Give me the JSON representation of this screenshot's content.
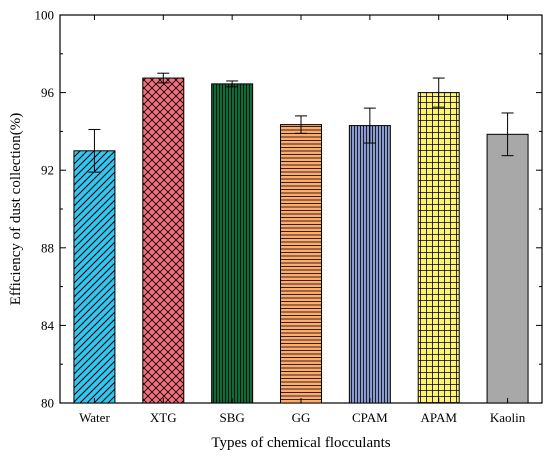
{
  "chart_data": {
    "type": "bar",
    "title": "",
    "xlabel": "Types of chemical flocculants",
    "ylabel": "Efficiency of dust collection(%)",
    "ylim": [
      80,
      100
    ],
    "yticks": [
      80,
      84,
      88,
      92,
      96,
      100
    ],
    "categories": [
      "Water",
      "XTG",
      "SBG",
      "GG",
      "CPAM",
      "APAM",
      "Kaolin"
    ],
    "values": [
      93.0,
      96.75,
      96.45,
      94.35,
      94.3,
      96.0,
      93.85
    ],
    "errors": [
      1.1,
      0.25,
      0.15,
      0.45,
      0.9,
      0.75,
      1.1
    ],
    "colors": [
      "#33c6ef",
      "#f2707e",
      "#0e6b3a",
      "#ffab6b",
      "#8c9bd0",
      "#fff36a",
      "#a8a8a8"
    ],
    "patterns": [
      "diagonal",
      "crosshatch-diagonal",
      "vertical",
      "horizontal",
      "vertical",
      "grid",
      "none"
    ],
    "grid": false
  }
}
